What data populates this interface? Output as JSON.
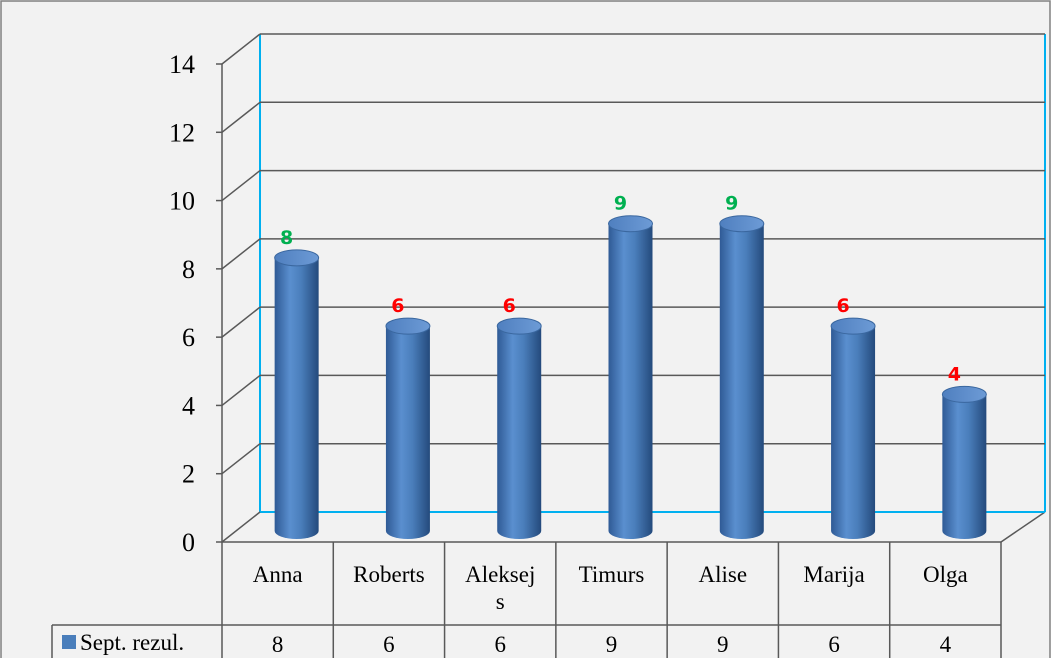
{
  "chart_data": {
    "type": "bar",
    "categories": [
      "Anna",
      "Roberts",
      "Aleksejs",
      "Timurs",
      "Alise",
      "Marija",
      "Olga"
    ],
    "category_display": [
      [
        "Anna"
      ],
      [
        "Roberts"
      ],
      [
        "Aleksej",
        "s"
      ],
      [
        "Timurs"
      ],
      [
        "Alise"
      ],
      [
        "Marija"
      ],
      [
        "Olga"
      ]
    ],
    "series": [
      {
        "name": "Sept. rezul.",
        "values": [
          8,
          6,
          6,
          9,
          9,
          6,
          4
        ]
      }
    ],
    "ylim": [
      0,
      14
    ],
    "yticks": [
      0,
      2,
      4,
      6,
      8,
      10,
      12,
      14
    ],
    "grid": true,
    "legend": "data-table",
    "data_table": true,
    "bar_color": "#4a7ebb",
    "label_colors": [
      "#00b050",
      "#ff0000",
      "#ff0000",
      "#00b050",
      "#00b050",
      "#ff0000",
      "#ff0000"
    ]
  }
}
